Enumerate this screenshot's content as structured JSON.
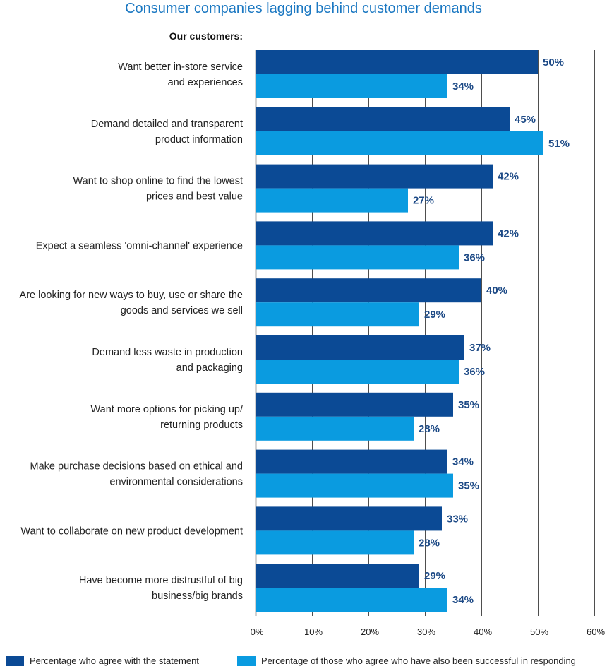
{
  "chart_data": {
    "type": "bar",
    "orientation": "horizontal",
    "title": "Consumer companies lagging behind customer demands",
    "subtitle": "Our customers:",
    "categories": [
      [
        "Want better in-store service",
        "and experiences"
      ],
      [
        "Demand detailed and transparent",
        "product information"
      ],
      [
        "Want to shop online to find the lowest ",
        "prices and best value"
      ],
      [
        "Expect a seamless 'omni-channel' experience"
      ],
      [
        "Are looking for new ways to buy, use or share the",
        "goods and services we sell"
      ],
      [
        "Demand less waste in production ",
        "and packaging"
      ],
      [
        "Want more options for picking up/",
        "returning products"
      ],
      [
        "Make purchase decisions based on ethical and",
        "environmental considerations"
      ],
      [
        "Want to collaborate on new product development"
      ],
      [
        "Have become more distrustful of big",
        "business/big brands"
      ]
    ],
    "series": [
      {
        "name": "Percentage who agree with the statement",
        "color": "#0b4a95",
        "values": [
          50,
          45,
          42,
          42,
          40,
          37,
          35,
          34,
          33,
          29
        ]
      },
      {
        "name": "Percentage of those who agree who have also been successful in responding",
        "color": "#0a9be0",
        "values": [
          34,
          51,
          27,
          36,
          29,
          36,
          28,
          35,
          28,
          34
        ]
      }
    ],
    "value_format": "{v}%",
    "xlim": [
      0,
      60
    ],
    "xticks": [
      0,
      10,
      20,
      30,
      40,
      50,
      60
    ],
    "tick_format": "{v}%",
    "grid": true,
    "legend": "bottom",
    "label_color": "#1d4a86",
    "grid_color": "#222222"
  }
}
